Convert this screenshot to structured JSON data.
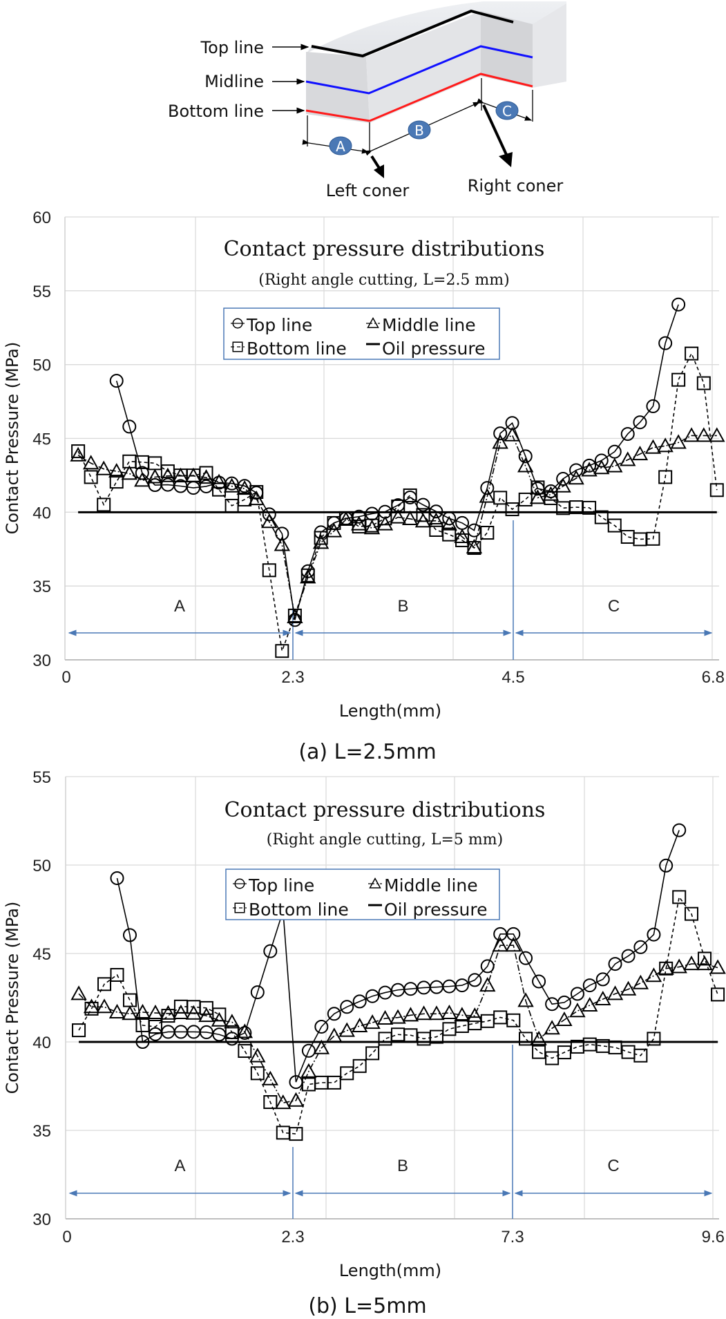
{
  "diagram": {
    "top_label": "Top line",
    "mid_label": "Midline",
    "bottom_label": "Bottom line",
    "segment_a": "A",
    "segment_b": "B",
    "segment_c": "C",
    "left_corner": "Left coner",
    "right_corner": "Right coner",
    "colors": {
      "top": "#000000",
      "mid": "#1010ff",
      "bottom": "#ff1a1a",
      "badge": "#4a78b5"
    }
  },
  "chart_data": [
    {
      "type": "line",
      "title": "Contact pressure distributions",
      "subtitle": "(Right angle cutting, L=2.5 mm)",
      "xlabel": "Length(mm)",
      "ylabel": "Contact  Pressure (MPa)",
      "caption": "(a) L=2.5mm",
      "ylim": [
        30,
        60
      ],
      "yticks": [
        "30",
        "35",
        "40",
        "45",
        "50",
        "55",
        "60"
      ],
      "xticks": [
        "0",
        "2.3",
        "4.5",
        "6.8"
      ],
      "xtick_values": [
        0,
        2.3,
        4.5,
        6.8
      ],
      "grid": true,
      "legend_placement": "top-center",
      "regions": [
        {
          "label": "A",
          "from": 0,
          "to": 2.3
        },
        {
          "label": "B",
          "from": 2.3,
          "to": 4.5
        },
        {
          "label": "C",
          "from": 4.5,
          "to": 6.8
        }
      ],
      "x": [
        0.12,
        0.25,
        0.38,
        0.51,
        0.64,
        0.77,
        0.9,
        1.03,
        1.16,
        1.29,
        1.42,
        1.55,
        1.68,
        1.81,
        1.93,
        2.06,
        2.19,
        2.32,
        2.45,
        2.58,
        2.71,
        2.83,
        2.96,
        3.09,
        3.22,
        3.35,
        3.47,
        3.6,
        3.73,
        3.86,
        3.99,
        4.11,
        4.24,
        4.37,
        4.49,
        4.64,
        4.78,
        4.93,
        5.07,
        5.22,
        5.37,
        5.51,
        5.66,
        5.81,
        5.95,
        6.1,
        6.24,
        6.39,
        6.54,
        6.68,
        6.83
      ],
      "series": [
        {
          "name": "Top line",
          "marker": "circle",
          "style": "solid",
          "values": [
            null,
            null,
            null,
            48.9,
            45.8,
            42.66,
            41.84,
            41.86,
            41.77,
            41.65,
            41.75,
            42.0,
            41.95,
            41.78,
            41.32,
            39.86,
            38.55,
            32.7,
            36.0,
            38.64,
            39.27,
            39.58,
            39.7,
            39.9,
            40.03,
            40.48,
            41.0,
            40.5,
            40.05,
            39.58,
            39.27,
            38.77,
            41.64,
            45.34,
            46.04,
            43.79,
            41.6,
            41.42,
            42.26,
            42.85,
            43.16,
            43.5,
            44.1,
            45.3,
            46.09,
            47.18,
            51.45,
            54.07,
            null,
            null,
            null
          ]
        },
        {
          "name": "Middle line",
          "marker": "triangle",
          "style": "dashdot",
          "values": [
            43.86,
            43.32,
            42.93,
            42.77,
            42.62,
            42.15,
            42.38,
            42.46,
            42.46,
            42.46,
            42.35,
            42.04,
            41.76,
            41.6,
            40.9,
            39.35,
            37.79,
            32.9,
            35.6,
            37.94,
            38.72,
            39.5,
            39.19,
            38.93,
            39.19,
            39.66,
            39.55,
            39.39,
            39.42,
            39.19,
            38.33,
            37.63,
            41.06,
            44.72,
            45.22,
            43.13,
            40.98,
            41.2,
            41.76,
            42.3,
            42.85,
            43.0,
            43.12,
            43.55,
            43.94,
            44.38,
            44.49,
            44.72,
            45.19,
            45.19,
            45.19
          ]
        },
        {
          "name": "Bottom line",
          "marker": "square",
          "style": "dashed",
          "values": [
            44.13,
            42.38,
            40.51,
            42.07,
            43.44,
            43.39,
            43.32,
            42.77,
            42.49,
            42.49,
            42.66,
            41.53,
            40.44,
            40.86,
            41.37,
            36.07,
            30.6,
            33.0,
            35.72,
            38.26,
            39.27,
            39.6,
            39.03,
            39.1,
            39.58,
            40.39,
            41.14,
            39.81,
            38.8,
            38.49,
            38.1,
            37.58,
            38.61,
            40.98,
            40.2,
            40.86,
            41.68,
            40.95,
            40.28,
            40.34,
            40.3,
            39.66,
            39.1,
            38.33,
            38.17,
            38.2,
            42.38,
            48.97,
            50.75,
            48.74,
            41.5
          ]
        }
      ],
      "reference": {
        "name": "Oil pressure",
        "value": 40,
        "x_range": [
          0.12,
          6.83
        ]
      }
    },
    {
      "type": "line",
      "title": "Contact pressure distributions",
      "subtitle": "(Right angle cutting, L=5 mm)",
      "xlabel": "Length(mm)",
      "ylabel": "Contact  Pressure (MPa)",
      "caption": "(b) L=5mm",
      "ylim": [
        30,
        55
      ],
      "yticks": [
        "30",
        "35",
        "40",
        "45",
        "50",
        "55"
      ],
      "xticks": [
        "0",
        "2.3",
        "7.3",
        "9.6"
      ],
      "xtick_values": [
        0,
        2.3,
        7.3,
        9.6
      ],
      "grid": true,
      "legend_placement": "top-center",
      "regions": [
        {
          "label": "A",
          "from": 0,
          "to": 2.3
        },
        {
          "label": "B",
          "from": 2.3,
          "to": 7.3
        },
        {
          "label": "C",
          "from": 7.3,
          "to": 9.6
        }
      ],
      "x": [
        0.12,
        0.25,
        0.38,
        0.51,
        0.64,
        0.77,
        0.9,
        1.03,
        1.16,
        1.29,
        1.42,
        1.55,
        1.68,
        1.81,
        1.94,
        2.07,
        2.2,
        2.37,
        2.66,
        2.95,
        3.24,
        3.53,
        3.82,
        4.11,
        4.4,
        4.69,
        4.98,
        5.28,
        5.57,
        5.86,
        6.15,
        6.44,
        6.73,
        7.02,
        7.31,
        7.45,
        7.6,
        7.75,
        7.89,
        8.04,
        8.18,
        8.33,
        8.47,
        8.62,
        8.76,
        8.91,
        9.05,
        9.2,
        9.34,
        9.49,
        9.64
      ],
      "series": [
        {
          "name": "Top line",
          "marker": "circle",
          "style": "solid",
          "values": [
            null,
            null,
            null,
            49.26,
            46.04,
            40.0,
            40.44,
            40.57,
            40.57,
            40.57,
            40.55,
            40.42,
            40.18,
            40.51,
            42.81,
            45.13,
            47.41,
            37.73,
            39.5,
            40.86,
            41.59,
            41.98,
            42.29,
            42.59,
            42.79,
            42.94,
            43.0,
            43.07,
            43.1,
            43.14,
            43.2,
            43.5,
            44.28,
            46.1,
            46.1,
            44.74,
            43.42,
            42.14,
            42.23,
            42.72,
            43.2,
            43.54,
            44.41,
            44.86,
            45.36,
            46.07,
            49.97,
            51.97,
            null,
            null,
            null
          ]
        },
        {
          "name": "Middle line",
          "marker": "triangle",
          "style": "dashdot",
          "values": [
            42.72,
            41.98,
            41.98,
            41.68,
            41.59,
            41.68,
            41.64,
            41.61,
            41.64,
            41.61,
            41.48,
            41.22,
            41.12,
            40.57,
            39.2,
            37.9,
            36.56,
            36.69,
            38.33,
            39.66,
            40.34,
            40.64,
            40.9,
            41.09,
            41.33,
            41.38,
            41.51,
            41.59,
            41.59,
            41.64,
            41.51,
            41.48,
            43.2,
            45.46,
            45.46,
            42.33,
            40.16,
            40.77,
            41.25,
            41.75,
            42.07,
            42.42,
            42.72,
            42.98,
            43.33,
            43.74,
            44.15,
            44.24,
            44.41,
            44.41,
            44.2
          ]
        },
        {
          "name": "Bottom line",
          "marker": "square",
          "style": "dashed",
          "values": [
            40.66,
            41.88,
            43.27,
            43.79,
            42.36,
            40.94,
            40.86,
            41.48,
            42.0,
            41.98,
            41.92,
            41.55,
            40.55,
            39.49,
            38.23,
            36.6,
            34.87,
            34.8,
            37.6,
            37.7,
            37.7,
            38.23,
            38.64,
            39.36,
            40.18,
            40.42,
            40.38,
            40.18,
            40.29,
            40.73,
            40.9,
            41.05,
            41.18,
            41.39,
            41.22,
            40.18,
            39.43,
            39.08,
            39.41,
            39.73,
            39.86,
            39.77,
            39.69,
            39.43,
            39.23,
            40.18,
            44.15,
            48.19,
            47.24,
            44.71,
            42.68
          ]
        }
      ],
      "reference": {
        "name": "Oil pressure",
        "value": 40,
        "x_range": [
          0.12,
          9.64
        ]
      }
    }
  ],
  "colors": {
    "grid": "#d9d9d9",
    "region_arrow": "#4a78b5",
    "legend_border": "#4a78b5",
    "ink": "#000000"
  }
}
